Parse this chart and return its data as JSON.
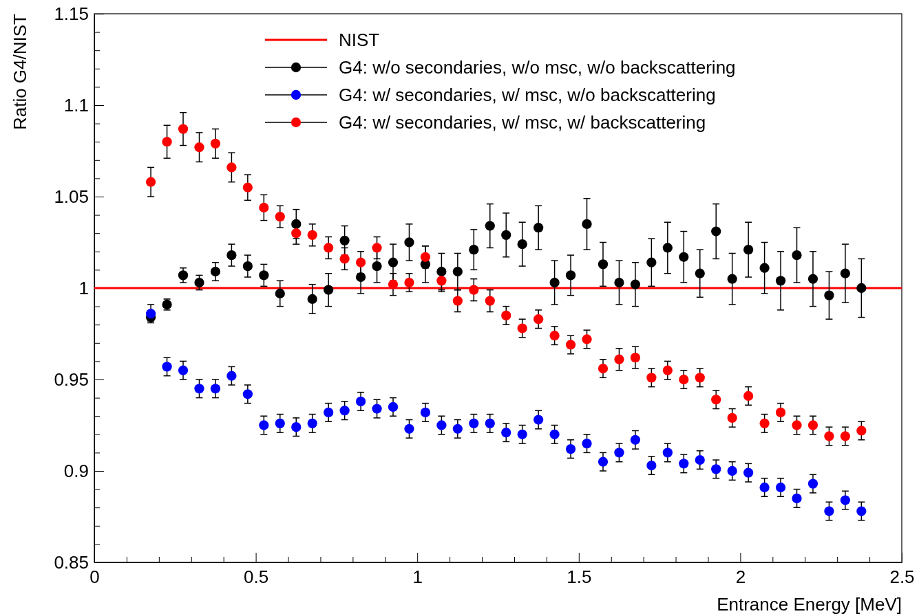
{
  "chart_data": {
    "type": "scatter",
    "xlabel": "Entrance Energy [MeV]",
    "ylabel": "Ratio G4/NIST",
    "x": [
      0.175,
      0.225,
      0.275,
      0.325,
      0.375,
      0.425,
      0.475,
      0.525,
      0.575,
      0.625,
      0.675,
      0.725,
      0.775,
      0.825,
      0.875,
      0.925,
      0.975,
      1.025,
      1.075,
      1.125,
      1.175,
      1.225,
      1.275,
      1.325,
      1.375,
      1.425,
      1.475,
      1.525,
      1.575,
      1.625,
      1.675,
      1.725,
      1.775,
      1.825,
      1.875,
      1.925,
      1.975,
      2.025,
      2.075,
      2.125,
      2.175,
      2.225,
      2.275,
      2.325,
      2.375
    ],
    "series": [
      {
        "name": "G4: w/o secondaries, w/o msc, w/o backscattering",
        "color": "#000000",
        "values": [
          0.984,
          0.991,
          1.007,
          1.003,
          1.009,
          1.018,
          1.012,
          1.007,
          0.997,
          1.035,
          0.994,
          0.999,
          1.026,
          1.006,
          1.012,
          1.014,
          1.025,
          1.013,
          1.009,
          1.009,
          1.021,
          1.034,
          1.029,
          1.024,
          1.033,
          1.003,
          1.007,
          1.035,
          1.013,
          1.003,
          1.002,
          1.014,
          1.022,
          1.017,
          1.008,
          1.031,
          1.005,
          1.021,
          1.011,
          1.004,
          1.018,
          1.005,
          0.996,
          1.008,
          1.0
        ],
        "errors": [
          0.002,
          0.003,
          0.004,
          0.004,
          0.005,
          0.006,
          0.006,
          0.006,
          0.007,
          0.008,
          0.008,
          0.009,
          0.008,
          0.009,
          0.009,
          0.01,
          0.01,
          0.01,
          0.01,
          0.01,
          0.011,
          0.012,
          0.012,
          0.012,
          0.012,
          0.012,
          0.011,
          0.014,
          0.012,
          0.012,
          0.012,
          0.013,
          0.014,
          0.014,
          0.013,
          0.015,
          0.014,
          0.015,
          0.014,
          0.016,
          0.015,
          0.015,
          0.013,
          0.016,
          0.016
        ]
      },
      {
        "name": "G4: w/ secondaries, w/ msc, w/o backscattering",
        "color": "#0000ff",
        "values": [
          0.986,
          0.957,
          0.955,
          0.945,
          0.945,
          0.952,
          0.942,
          0.925,
          0.926,
          0.924,
          0.926,
          0.932,
          0.933,
          0.938,
          0.934,
          0.935,
          0.923,
          0.932,
          0.925,
          0.923,
          0.926,
          0.926,
          0.921,
          0.92,
          0.928,
          0.92,
          0.912,
          0.915,
          0.905,
          0.91,
          0.917,
          0.903,
          0.91,
          0.904,
          0.906,
          0.901,
          0.9,
          0.899,
          0.891,
          0.891,
          0.885,
          0.893,
          0.878,
          0.884,
          0.878
        ],
        "errors": [
          0.005,
          0.005,
          0.005,
          0.005,
          0.005,
          0.005,
          0.005,
          0.005,
          0.005,
          0.005,
          0.005,
          0.005,
          0.005,
          0.005,
          0.005,
          0.005,
          0.005,
          0.005,
          0.005,
          0.005,
          0.005,
          0.005,
          0.005,
          0.005,
          0.005,
          0.005,
          0.005,
          0.005,
          0.005,
          0.005,
          0.005,
          0.005,
          0.005,
          0.005,
          0.005,
          0.005,
          0.005,
          0.005,
          0.005,
          0.005,
          0.005,
          0.005,
          0.005,
          0.005,
          0.005
        ]
      },
      {
        "name": "G4: w/ secondaries, w/ msc, w/ backscattering",
        "color": "#ff0000",
        "values": [
          1.058,
          1.08,
          1.087,
          1.077,
          1.079,
          1.066,
          1.055,
          1.044,
          1.039,
          1.03,
          1.029,
          1.022,
          1.016,
          1.014,
          1.022,
          1.002,
          1.003,
          1.017,
          1.004,
          0.993,
          0.999,
          0.993,
          0.985,
          0.978,
          0.983,
          0.974,
          0.969,
          0.972,
          0.956,
          0.961,
          0.962,
          0.951,
          0.955,
          0.95,
          0.951,
          0.939,
          0.929,
          0.941,
          0.926,
          0.932,
          0.925,
          0.925,
          0.919,
          0.919,
          0.922
        ],
        "errors": [
          0.008,
          0.009,
          0.009,
          0.008,
          0.008,
          0.008,
          0.007,
          0.007,
          0.006,
          0.006,
          0.006,
          0.006,
          0.006,
          0.006,
          0.006,
          0.006,
          0.005,
          0.006,
          0.006,
          0.006,
          0.006,
          0.006,
          0.005,
          0.005,
          0.005,
          0.005,
          0.005,
          0.005,
          0.005,
          0.006,
          0.006,
          0.005,
          0.005,
          0.005,
          0.005,
          0.005,
          0.005,
          0.005,
          0.005,
          0.005,
          0.005,
          0.005,
          0.005,
          0.005,
          0.005
        ]
      }
    ],
    "ref_lines": [
      {
        "axis": "y",
        "value": 1,
        "label": "NIST",
        "color": "#ff0000"
      }
    ],
    "marker": "circle",
    "legend": "top right",
    "xlim": [
      0,
      2.5
    ],
    "ylim": [
      0.85,
      1.15
    ],
    "xticks": [
      0,
      {
        "value": 0.1,
        "label": null
      },
      {
        "value": 0.2,
        "label": null
      },
      {
        "value": 0.3,
        "label": null
      },
      {
        "value": 0.4,
        "label": null
      },
      0.5,
      {
        "value": 0.6,
        "label": null
      },
      {
        "value": 0.7,
        "label": null
      },
      {
        "value": 0.8,
        "label": null
      },
      {
        "value": 0.9,
        "label": null
      },
      1,
      {
        "value": 1.1,
        "label": null
      },
      {
        "value": 1.2,
        "label": null
      },
      {
        "value": 1.3,
        "label": null
      },
      {
        "value": 1.4,
        "label": null
      },
      1.5,
      {
        "value": 1.6,
        "label": null
      },
      {
        "value": 1.7,
        "label": null
      },
      {
        "value": 1.8,
        "label": null
      },
      {
        "value": 1.9,
        "label": null
      },
      2,
      {
        "value": 2.1,
        "label": null
      },
      {
        "value": 2.2,
        "label": null
      },
      {
        "value": 2.3,
        "label": null
      },
      {
        "value": 2.4,
        "label": null
      },
      2.5
    ],
    "yticks": [
      0.85,
      {
        "value": 0.86,
        "label": null
      },
      {
        "value": 0.87,
        "label": null
      },
      {
        "value": 0.88,
        "label": null
      },
      {
        "value": 0.89,
        "label": null
      },
      0.9,
      {
        "value": 0.91,
        "label": null
      },
      {
        "value": 0.92,
        "label": null
      },
      {
        "value": 0.93,
        "label": null
      },
      {
        "value": 0.94,
        "label": null
      },
      0.95,
      {
        "value": 0.96,
        "label": null
      },
      {
        "value": 0.97,
        "label": null
      },
      {
        "value": 0.98,
        "label": null
      },
      {
        "value": 0.99,
        "label": null
      },
      1,
      {
        "value": 1.01,
        "label": null
      },
      {
        "value": 1.02,
        "label": null
      },
      {
        "value": 1.03,
        "label": null
      },
      {
        "value": 1.04,
        "label": null
      },
      1.05,
      {
        "value": 1.06,
        "label": null
      },
      {
        "value": 1.07,
        "label": null
      },
      {
        "value": 1.08,
        "label": null
      },
      {
        "value": 1.09,
        "label": null
      },
      1.1,
      {
        "value": 1.11,
        "label": null
      },
      {
        "value": 1.12,
        "label": null
      },
      {
        "value": 1.13,
        "label": null
      },
      {
        "value": 1.14,
        "label": null
      },
      1.15
    ]
  }
}
